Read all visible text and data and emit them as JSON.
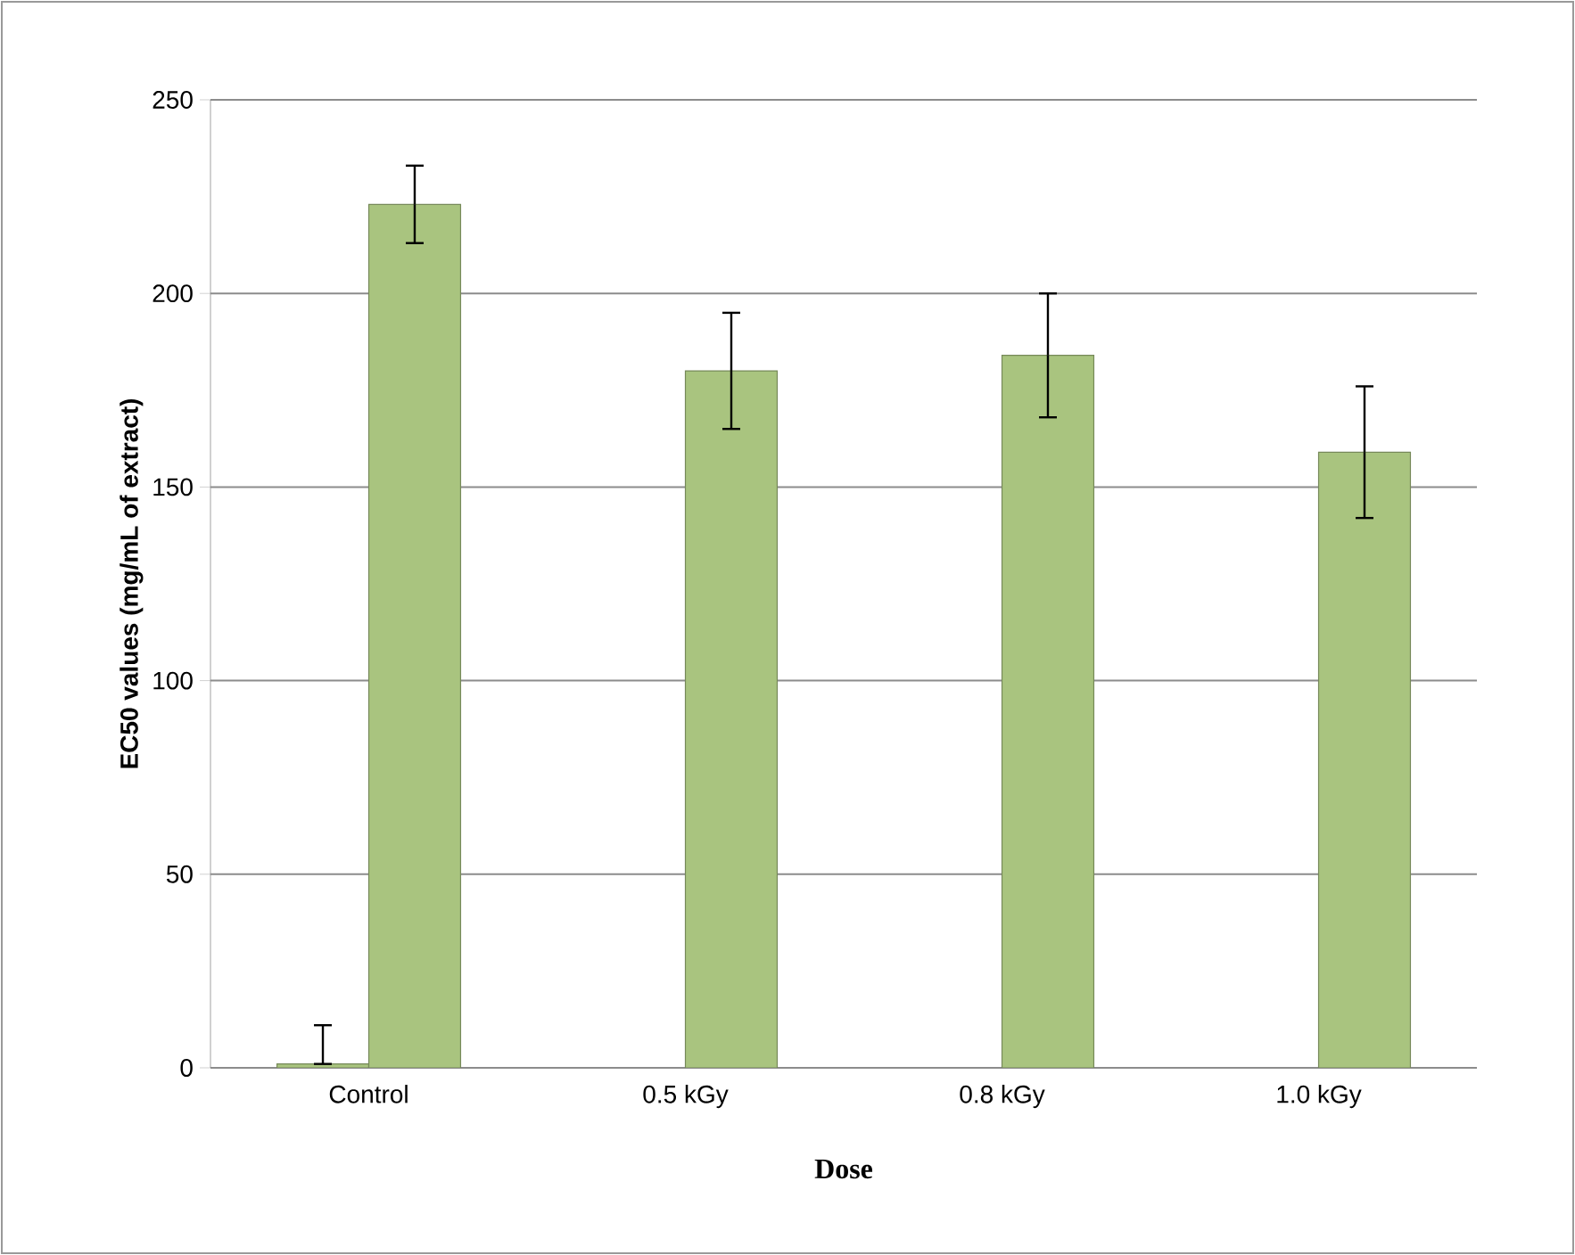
{
  "chart_data": {
    "type": "bar",
    "xlabel": "Dose",
    "ylabel": "EC50 values (mg/mL of extract)",
    "categories": [
      "Control",
      "0.5 kGy",
      "0.8 kGy",
      "1.0 kGy"
    ],
    "series": [
      {
        "color": "#a9c47f",
        "values": [
          1,
          null,
          null,
          null
        ],
        "errors": [
          [
            1,
            11
          ],
          null,
          null,
          null
        ]
      },
      {
        "color": "#a9c47f",
        "values": [
          223,
          180,
          184,
          159
        ],
        "errors": [
          10,
          15,
          16,
          17
        ]
      }
    ],
    "ylim": [
      0,
      250
    ],
    "yticks": [
      0,
      50,
      100,
      150,
      200,
      250
    ],
    "grid": "y"
  }
}
